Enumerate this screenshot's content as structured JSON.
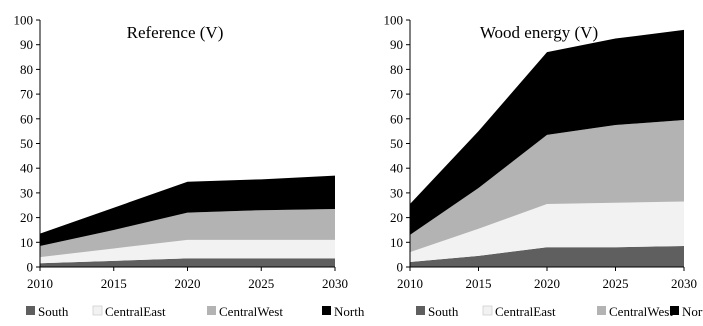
{
  "chart_data": [
    {
      "type": "area",
      "stacked": true,
      "title": "Reference (V)",
      "x": [
        2010,
        2015,
        2020,
        2025,
        2030
      ],
      "x_ticks": [
        "2010",
        "2015",
        "2020",
        "2025",
        "2030"
      ],
      "ylim": [
        0,
        100
      ],
      "y_ticks": [
        "0",
        "10",
        "20",
        "30",
        "40",
        "50",
        "60",
        "70",
        "80",
        "90",
        "100"
      ],
      "grid": false,
      "legend_placement": "bottom",
      "series": [
        {
          "name": "South",
          "color": "#5f5f5f",
          "values": [
            1.5,
            2.5,
            3.5,
            3.5,
            3.5
          ]
        },
        {
          "name": "CentralEast",
          "color": "#f2f2f2",
          "values": [
            2.5,
            5.0,
            7.5,
            7.5,
            7.5
          ]
        },
        {
          "name": "CentralWest",
          "color": "#b3b3b3",
          "values": [
            4.5,
            7.5,
            11.0,
            12.0,
            12.5
          ]
        },
        {
          "name": "North",
          "color": "#000000",
          "values": [
            5.0,
            9.0,
            12.5,
            12.5,
            13.5
          ]
        }
      ]
    },
    {
      "type": "area",
      "stacked": true,
      "title": "Wood energy (V)",
      "x": [
        2010,
        2015,
        2020,
        2025,
        2030
      ],
      "x_ticks": [
        "2010",
        "2015",
        "2020",
        "2025",
        "2030"
      ],
      "ylim": [
        0,
        100
      ],
      "y_ticks": [
        "0",
        "10",
        "20",
        "30",
        "40",
        "50",
        "60",
        "70",
        "80",
        "90",
        "100"
      ],
      "grid": false,
      "legend_placement": "bottom",
      "series": [
        {
          "name": "South",
          "color": "#5f5f5f",
          "values": [
            2.0,
            4.5,
            8.0,
            8.0,
            8.5
          ]
        },
        {
          "name": "CentralEast",
          "color": "#f2f2f2",
          "values": [
            4.0,
            11.0,
            17.5,
            18.0,
            18.0
          ]
        },
        {
          "name": "CentralWest",
          "color": "#b3b3b3",
          "values": [
            7.0,
            16.5,
            28.0,
            31.5,
            33.0
          ]
        },
        {
          "name": "North",
          "color": "#000000",
          "values": [
            12.5,
            23.0,
            33.5,
            35.0,
            36.5
          ]
        }
      ]
    }
  ]
}
